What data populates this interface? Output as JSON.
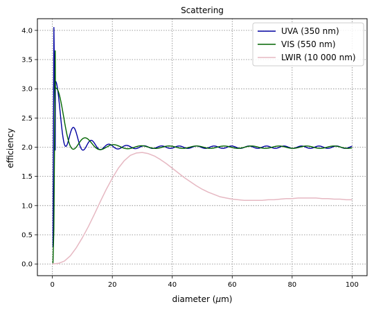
{
  "chart_data": {
    "type": "line",
    "title": "Scattering",
    "xlabel_prefix": "diameter (",
    "xlabel_mu": "μ",
    "xlabel_suffix": "m)",
    "ylabel": "efficiency",
    "xlim": [
      -5,
      105
    ],
    "ylim": [
      -0.2,
      4.2
    ],
    "xticks": [
      0,
      20,
      40,
      60,
      80,
      100
    ],
    "yticks": [
      0.0,
      0.5,
      1.0,
      1.5,
      2.0,
      2.5,
      3.0,
      3.5,
      4.0
    ],
    "grid": true,
    "legend_position": "top-right",
    "series": [
      {
        "name": "UVA (350 nm)",
        "color": "#0000a0",
        "wavelength_um": 0.35,
        "x": [
          0.2,
          0.3,
          0.5,
          0.7,
          1.0,
          1.3,
          1.5,
          2.0,
          2.5,
          3.0,
          4.0,
          5.0,
          7.5,
          10,
          15,
          20,
          30,
          40,
          60,
          80,
          100
        ],
        "y": [
          0.3,
          1.5,
          4.05,
          3.2,
          1.7,
          2.5,
          2.1,
          1.85,
          2.4,
          1.8,
          2.3,
          1.85,
          2.2,
          1.95,
          2.12,
          2.06,
          2.04,
          2.03,
          2.02,
          2.02,
          2.02
        ]
      },
      {
        "name": "VIS (550 nm)",
        "color": "#006400",
        "wavelength_um": 0.55,
        "x": [
          0.2,
          0.5,
          0.8,
          1.0,
          1.3,
          1.7,
          2.0,
          2.5,
          3.0,
          3.5,
          4.0,
          5.0,
          7.5,
          10,
          15,
          20,
          30,
          40,
          60,
          80,
          100
        ],
        "y": [
          0.02,
          0.6,
          2.6,
          4.0,
          1.65,
          2.9,
          1.7,
          2.9,
          1.75,
          2.65,
          1.8,
          2.45,
          2.35,
          2.25,
          2.15,
          2.1,
          2.07,
          2.05,
          2.04,
          2.03,
          2.03
        ]
      },
      {
        "name": "LWIR (10 000 nm)",
        "color": "#e6b8c2",
        "x": [
          0,
          2,
          4,
          6,
          8,
          10,
          12,
          14,
          16,
          18,
          20,
          22,
          24,
          26,
          28,
          30,
          32,
          34,
          36,
          38,
          40,
          42,
          44,
          46,
          48,
          50,
          52,
          54,
          56,
          58,
          60,
          62,
          64,
          66,
          68,
          70,
          72,
          74,
          76,
          78,
          80,
          82,
          84,
          86,
          88,
          90,
          92,
          94,
          96,
          98,
          100
        ],
        "y": [
          0.0,
          0.01,
          0.05,
          0.14,
          0.28,
          0.45,
          0.64,
          0.85,
          1.07,
          1.28,
          1.47,
          1.64,
          1.77,
          1.86,
          1.9,
          1.91,
          1.89,
          1.85,
          1.79,
          1.72,
          1.64,
          1.56,
          1.48,
          1.41,
          1.34,
          1.28,
          1.23,
          1.19,
          1.15,
          1.13,
          1.11,
          1.1,
          1.09,
          1.09,
          1.09,
          1.09,
          1.1,
          1.1,
          1.11,
          1.12,
          1.12,
          1.13,
          1.13,
          1.13,
          1.13,
          1.12,
          1.12,
          1.11,
          1.11,
          1.1,
          1.1
        ]
      }
    ]
  }
}
